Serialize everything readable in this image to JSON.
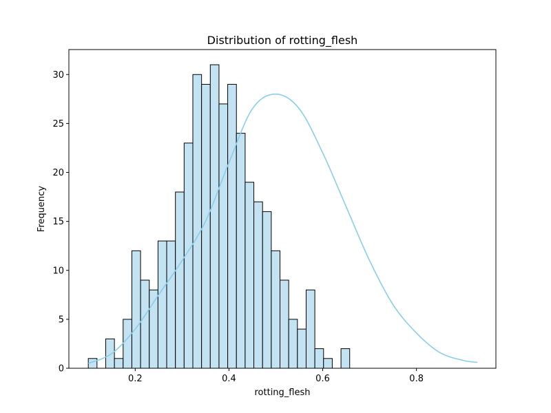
{
  "chart_data": {
    "type": "bar",
    "title": "Distribution of rotting_flesh",
    "xlabel": "rotting_flesh",
    "ylabel": "Frequency",
    "xlim": [
      0.0585,
      0.9695
    ],
    "ylim": [
      0,
      32.55
    ],
    "x_ticks": [
      0.2,
      0.4,
      0.6,
      0.8
    ],
    "x_tick_labels": [
      "0.2",
      "0.4",
      "0.6",
      "0.8"
    ],
    "y_ticks": [
      0,
      5,
      10,
      15,
      20,
      25,
      30
    ],
    "y_tick_labels": [
      "0",
      "5",
      "10",
      "15",
      "20",
      "25",
      "30"
    ],
    "bins": {
      "start": 0.0999,
      "width": 0.01859,
      "counts": [
        1,
        0,
        3,
        1,
        5,
        12,
        9,
        8,
        13,
        13,
        18,
        23,
        30,
        29,
        31,
        27,
        29,
        24,
        19,
        17,
        16,
        12,
        9,
        5,
        4,
        8,
        2,
        1,
        0,
        2
      ]
    },
    "kde": {
      "x": [
        0.1,
        0.15,
        0.2,
        0.25,
        0.3,
        0.35,
        0.4,
        0.45,
        0.5,
        0.55,
        0.6,
        0.65,
        0.7,
        0.75,
        0.8,
        0.85,
        0.9,
        0.93
      ],
      "y": [
        0.5,
        1.5,
        4.0,
        7.5,
        11.0,
        15.0,
        21.0,
        26.5,
        28.0,
        26.5,
        22.0,
        16.5,
        11.0,
        6.5,
        3.6,
        1.6,
        0.8,
        0.6
      ]
    },
    "colors": {
      "bar_fill": "#c3e3f2",
      "bar_edge": "#000000",
      "kde_line": "#87ceeb"
    },
    "grid": false,
    "legend": false
  }
}
